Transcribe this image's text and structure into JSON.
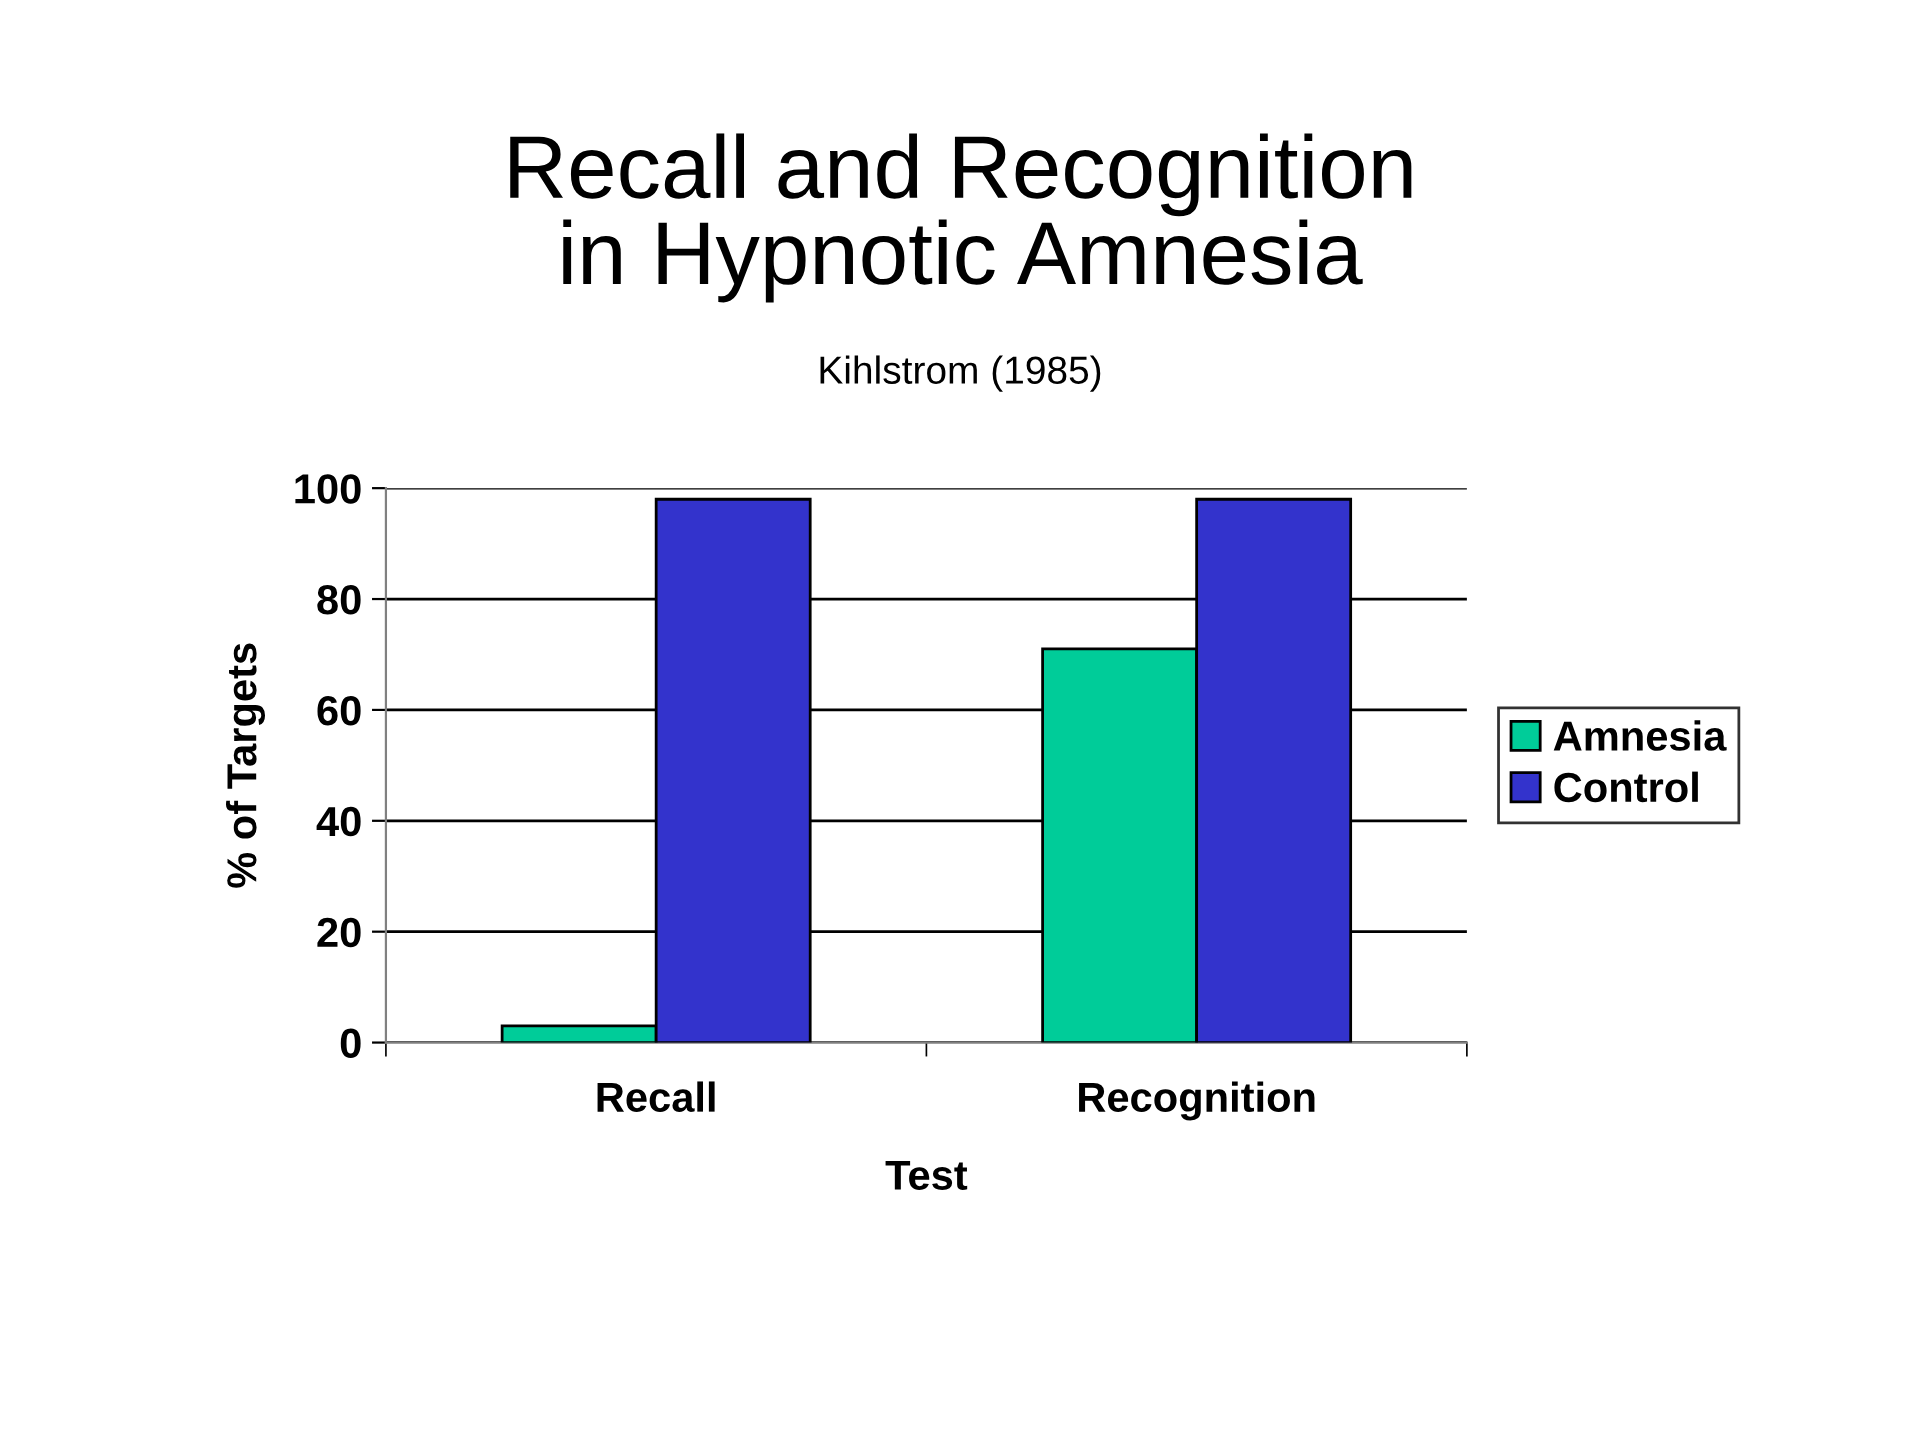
{
  "chart_data": {
    "type": "bar",
    "title": "Recall and Recognition\nin Hypnotic Amnesia",
    "subtitle": "Kihlstrom (1985)",
    "xlabel": "Test",
    "ylabel": "% of Targets",
    "categories": [
      "Recall",
      "Recognition"
    ],
    "series": [
      {
        "name": "Amnesia",
        "color": "#00cc99",
        "values": [
          3,
          71
        ]
      },
      {
        "name": "Control",
        "color": "#3333cc",
        "values": [
          98,
          98
        ]
      }
    ],
    "ylim": [
      0,
      100
    ],
    "yticks": [
      0,
      20,
      40,
      60,
      80,
      100
    ],
    "grid": "y",
    "legend": "right"
  }
}
